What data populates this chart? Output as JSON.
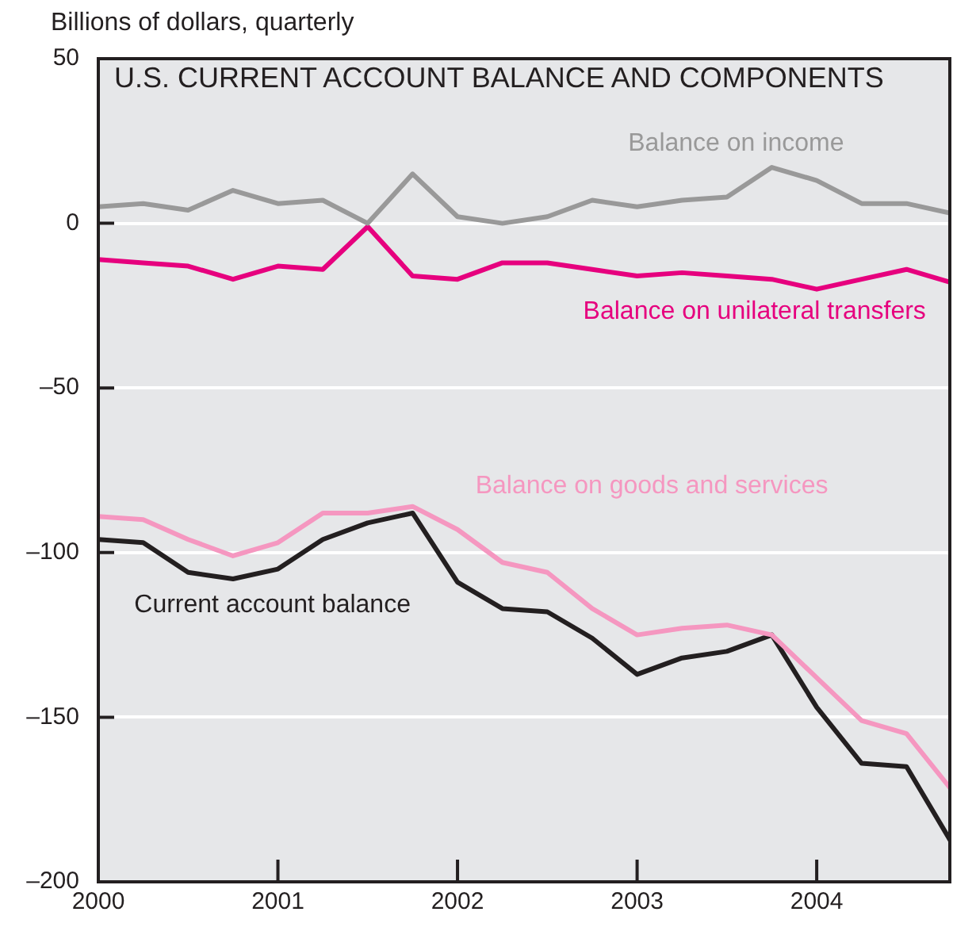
{
  "chart_data": {
    "type": "line",
    "title": "U.S. CURRENT ACCOUNT BALANCE AND COMPONENTS",
    "ylabel": "Billions of dollars, quarterly",
    "x": [
      2000,
      2000.25,
      2000.5,
      2000.75,
      2001,
      2001.25,
      2001.5,
      2001.75,
      2002,
      2002.25,
      2002.5,
      2002.75,
      2003,
      2003.25,
      2003.5,
      2003.75,
      2004,
      2004.25,
      2004.5,
      2004.75
    ],
    "xlim": [
      2000,
      2004.75
    ],
    "xticks": [
      2000,
      2001,
      2002,
      2003,
      2004
    ],
    "ylim": [
      -200,
      50
    ],
    "yticks": [
      {
        "value": -200,
        "label": "–200"
      },
      {
        "value": -150,
        "label": "–150"
      },
      {
        "value": -100,
        "label": "–100"
      },
      {
        "value": -50,
        "label": "–50"
      },
      0,
      50
    ],
    "grid": "y",
    "legend": false,
    "marker": "none",
    "line_style": "solid",
    "series": [
      {
        "name": "Balance on income",
        "color": "#999999",
        "values": [
          5,
          6,
          4,
          10,
          6,
          7,
          0,
          15,
          2,
          0,
          2,
          7,
          5,
          7,
          8,
          17,
          13,
          6,
          6,
          3
        ]
      },
      {
        "name": "Balance on unilateral transfers",
        "color": "#e6007e",
        "values": [
          -11,
          -12,
          -13,
          -17,
          -13,
          -14,
          -1,
          -16,
          -17,
          -12,
          -12,
          -14,
          -16,
          -15,
          -16,
          -17,
          -20,
          -17,
          -14,
          -18
        ]
      },
      {
        "name": "Balance on goods and services",
        "color": "#f597c0",
        "values": [
          -89,
          -90,
          -96,
          -101,
          -97,
          -88,
          -88,
          -86,
          -93,
          -103,
          -106,
          -117,
          -125,
          -123,
          -122,
          -125,
          -138,
          -151,
          -155,
          -172
        ]
      },
      {
        "name": "Current account balance",
        "color": "#231f20",
        "values": [
          -96,
          -97,
          -106,
          -108,
          -105,
          -96,
          -91,
          -88,
          -109,
          -117,
          -118,
          -126,
          -137,
          -132,
          -130,
          -125,
          -147,
          -164,
          -165,
          -188
        ]
      }
    ]
  }
}
